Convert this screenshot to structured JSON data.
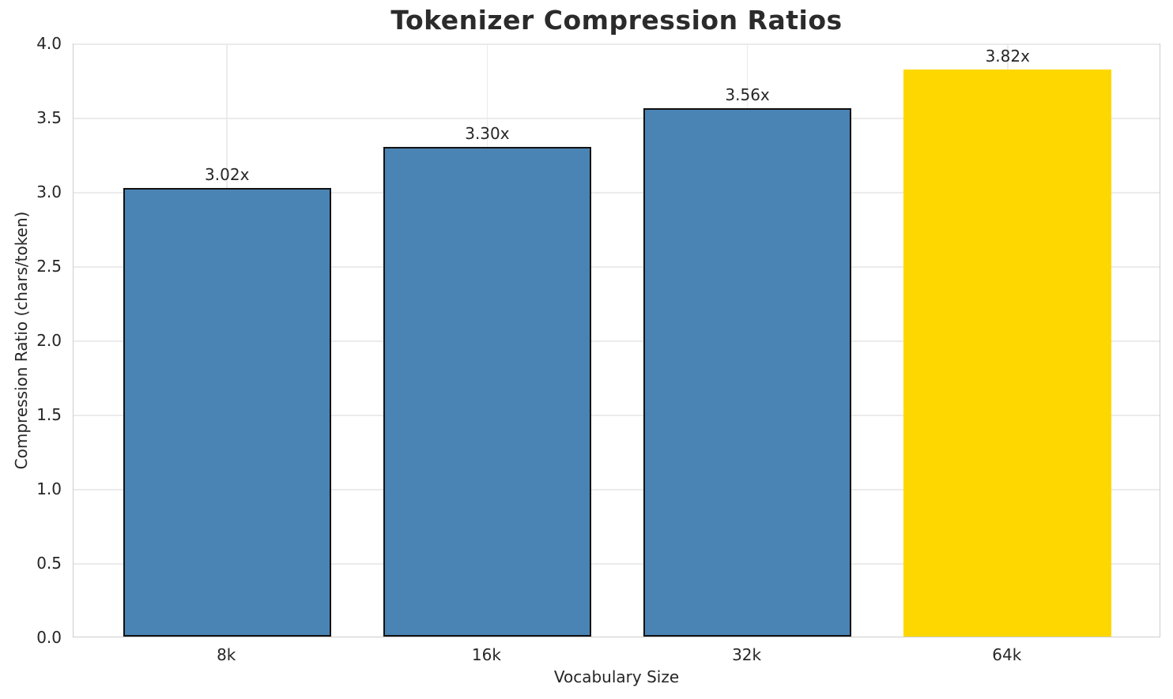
{
  "chart_data": {
    "type": "bar",
    "title": "Tokenizer Compression Ratios",
    "xlabel": "Vocabulary Size",
    "ylabel": "Compression Ratio (chars/token)",
    "categories": [
      "8k",
      "16k",
      "32k",
      "64k"
    ],
    "values": [
      3.02,
      3.3,
      3.56,
      3.82
    ],
    "value_labels": [
      "3.02x",
      "3.30x",
      "3.56x",
      "3.82x"
    ],
    "ylim": [
      0.0,
      4.0
    ],
    "yticks": [
      "0.0",
      "0.5",
      "1.0",
      "1.5",
      "2.0",
      "2.5",
      "3.0",
      "3.5",
      "4.0"
    ],
    "grid": true,
    "legend": "none",
    "bar_colors": [
      "#4a84b4",
      "#4a84b4",
      "#4a84b4",
      "#ffd700"
    ],
    "bar_edge_colors": [
      "#111111",
      "#111111",
      "#111111",
      null
    ],
    "highlight_category": "64k",
    "colors": {
      "bar_default": "#4a84b4",
      "bar_highlight": "#ffd700",
      "bar_edge": "#111111",
      "grid": "#ebebeb",
      "spine": "#cdcdcd",
      "text": "#262626"
    }
  }
}
